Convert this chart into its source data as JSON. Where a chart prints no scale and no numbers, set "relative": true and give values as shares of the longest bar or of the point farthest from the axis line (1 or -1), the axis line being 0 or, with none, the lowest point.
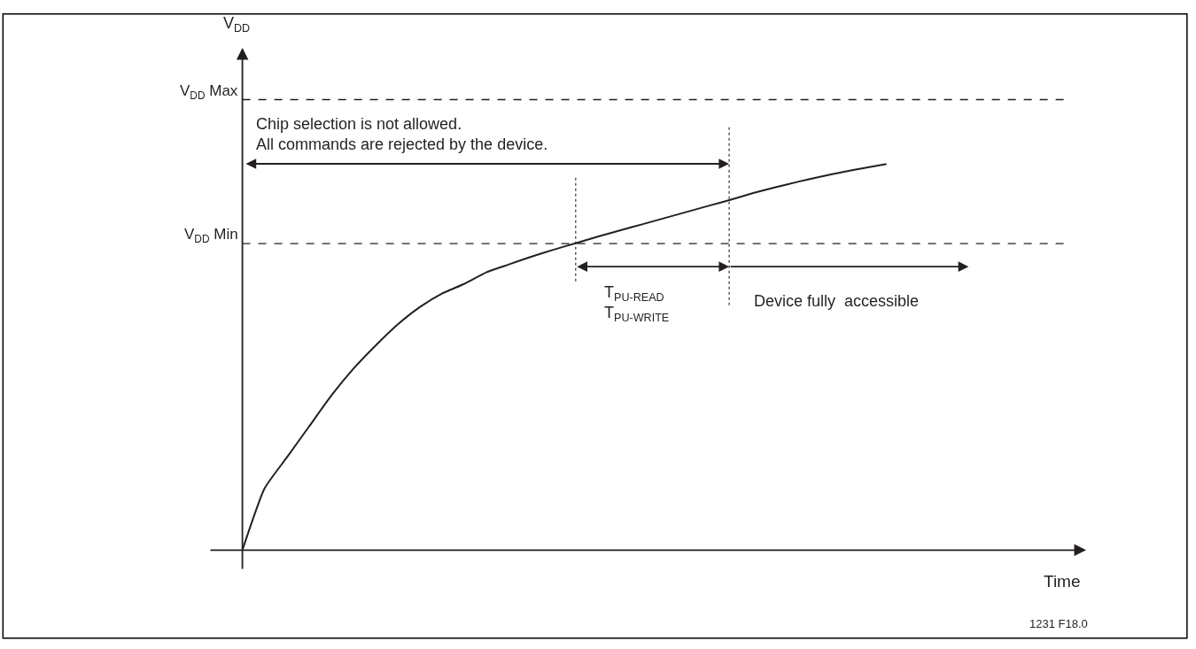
{
  "chart_data": {
    "type": "line",
    "relative": true,
    "categories": [
      null,
      null,
      null,
      null,
      null,
      null,
      null,
      null,
      null,
      null,
      null,
      null,
      null,
      null,
      null,
      null,
      null,
      null,
      null,
      null,
      null,
      null,
      null,
      null,
      null,
      null,
      null,
      null,
      null,
      null
    ],
    "series": [
      {
        "color": "#231f20",
        "values": [
          0,
          0.16,
          0.24,
          0.32,
          0.4,
          0.47,
          0.53,
          0.585,
          0.63,
          0.665,
          0.69,
          0.72,
          0.74,
          0.76,
          0.778,
          0.795,
          0.812,
          0.828,
          0.844,
          0.86,
          0.876,
          0.892,
          0.908,
          0.925,
          0.94,
          0.954,
          0.967,
          0.979,
          0.99,
          1
        ]
      }
    ],
    "ref_lines": [
      {
        "axis": "y",
        "value": 1.167,
        "label": "V$_{DD}$ Max",
        "line_style": "dashed"
      },
      {
        "axis": "y",
        "value": 0.794,
        "label": "V$_{DD}$ Min",
        "line_style": "dashed"
      }
    ],
    "annotations": [
      "V$_{DD}$",
      "Time",
      "Chip selection is not allowed.\nAll commands are rejected by the device.",
      "T$_{PU-READ}$\nT$_{PU-WRITE}$",
      "Device fully  accessible",
      "1231 F18.0"
    ],
    "marker": "none",
    "line_style": "solid"
  }
}
